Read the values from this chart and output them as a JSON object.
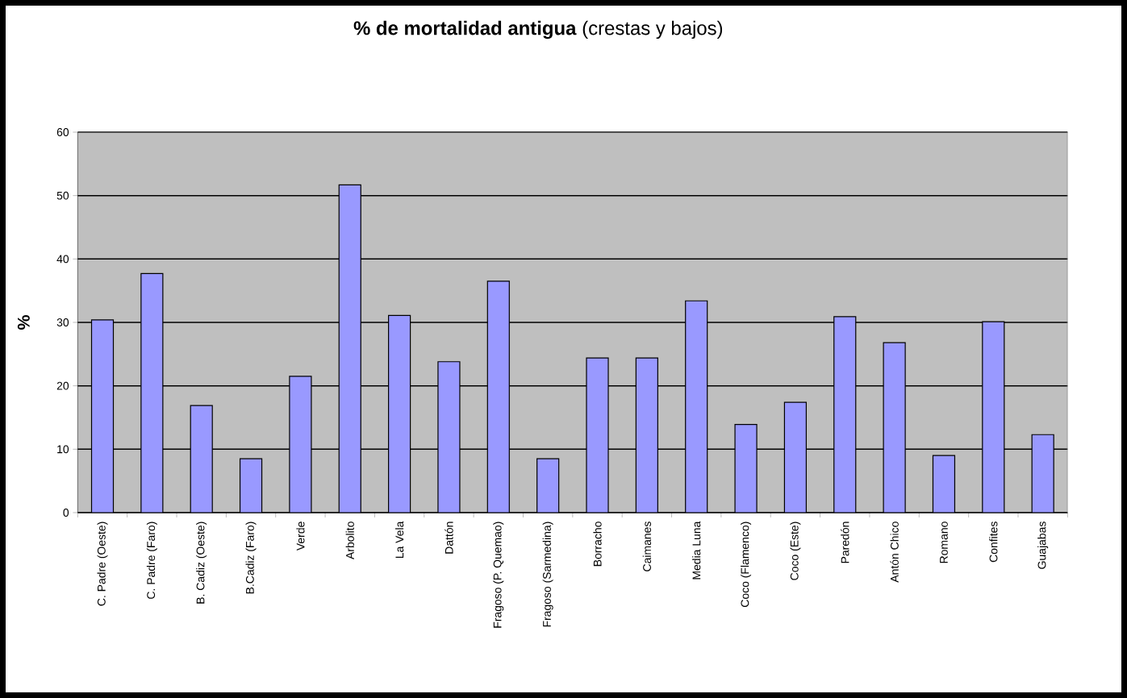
{
  "chart_data": {
    "type": "bar",
    "title": "**% de mortalidad antigua** (crestas y bajos)",
    "ylabel": "%",
    "categories": [
      "C. Padre (Oeste)",
      "C. Padre (Faro)",
      "B. Cadiz (Oeste)",
      "B.Cadiz (Faro)",
      "Verde",
      "Arbolito",
      "La Vela",
      "Dattón",
      "Fragoso (P. Quemao)",
      "Fragoso (Sarmedina)",
      "Borracho",
      "Caimanes",
      "Media Luna",
      "Coco (Flamenco)",
      "Coco (Este)",
      "Paredón",
      "Antón Chico",
      "Romano",
      "Confites",
      "Guajabas"
    ],
    "values": [
      30.4,
      37.7,
      16.9,
      8.5,
      21.5,
      51.7,
      31.1,
      23.8,
      36.5,
      8.5,
      24.4,
      24.4,
      33.4,
      13.9,
      17.4,
      30.9,
      26.8,
      9.0,
      30.1,
      12.3
    ],
    "color": "#9999ff",
    "ylim": [
      0,
      60
    ],
    "yticks": [
      0,
      10,
      20,
      30,
      40,
      50,
      60
    ],
    "grid": "y"
  }
}
